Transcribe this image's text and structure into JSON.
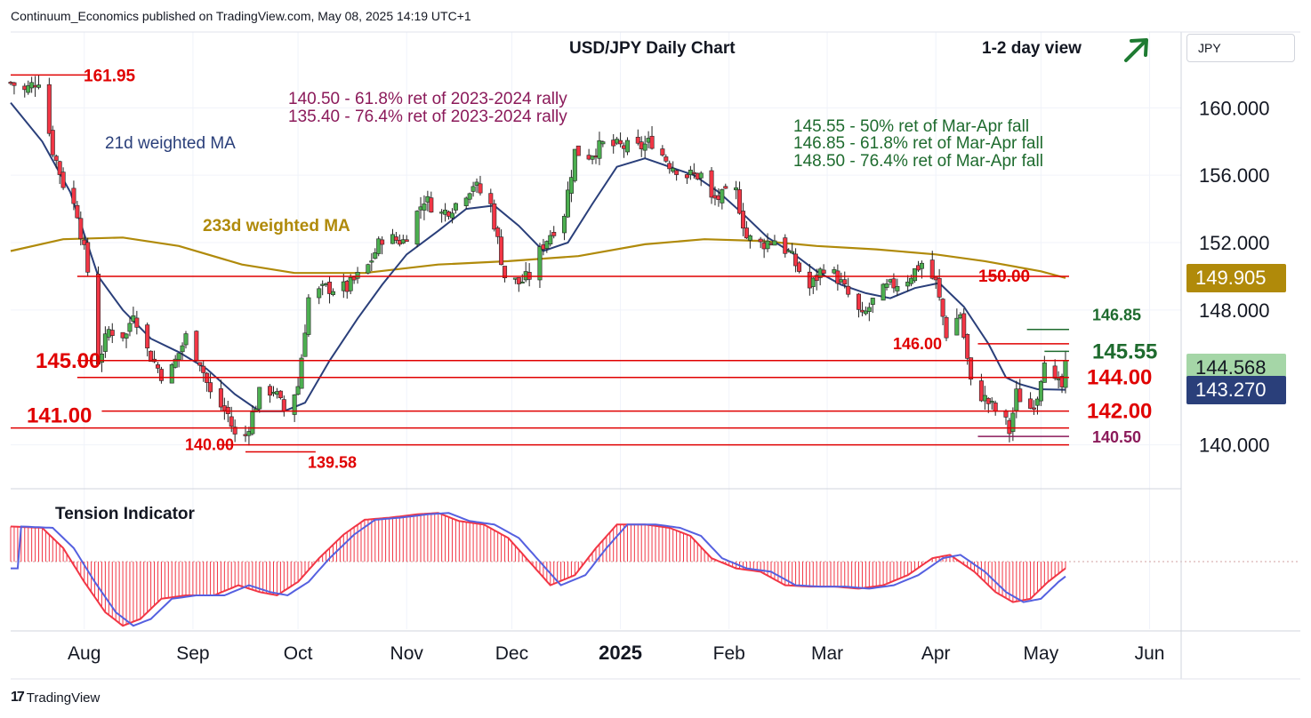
{
  "header": {
    "published": "Continuum_Economics published on TradingView.com, May 08, 2025 14:19 UTC+1"
  },
  "footer": {
    "logo_text": "17",
    "brand": "TradingView"
  },
  "currency": "JPY",
  "colors": {
    "up": "#4caf50",
    "down": "#f23645",
    "ma21": "#2a3f7a",
    "ma233": "#b08a0a",
    "level": "#e00000",
    "fib_green": "#1e6b2e",
    "fib_purple": "#8b1a5a",
    "arrow": "#1e7b32",
    "tension": "#f23645",
    "tension_line": "#5560e0"
  },
  "chart_data": [
    {
      "type": "candlestick",
      "title": "USD/JPY Daily Chart",
      "view": "1-2 day view",
      "view_direction": "up",
      "x_axis": {
        "tick_labels": [
          "Aug",
          "Sep",
          "Oct",
          "Nov",
          "Dec",
          "2025",
          "Feb",
          "Mar",
          "Apr",
          "May",
          "Jun"
        ],
        "range": [
          "2024-07-11",
          "2025-06-10"
        ]
      },
      "y_axis": {
        "tick_labels": [
          "160.000",
          "156.000",
          "152.000",
          "148.000",
          "140.000"
        ],
        "range": [
          137.5,
          164.5
        ]
      },
      "grid": true,
      "series": [
        {
          "name": "21d weighted MA",
          "points": [
            [
              "2024-07-11",
              160.3
            ],
            [
              "2024-07-20",
              158.0
            ],
            [
              "2024-07-28",
              155.0
            ],
            [
              "2024-08-05",
              150.0
            ],
            [
              "2024-08-12",
              148.0
            ],
            [
              "2024-08-20",
              146.3
            ],
            [
              "2024-08-28",
              145.5
            ],
            [
              "2024-09-05",
              144.5
            ],
            [
              "2024-09-13",
              143.0
            ],
            [
              "2024-09-20",
              142.0
            ],
            [
              "2024-09-27",
              142.0
            ],
            [
              "2024-10-03",
              142.5
            ],
            [
              "2024-10-10",
              145.0
            ],
            [
              "2024-10-18",
              147.5
            ],
            [
              "2024-10-25",
              149.5
            ],
            [
              "2024-11-01",
              151.3
            ],
            [
              "2024-11-10",
              152.7
            ],
            [
              "2024-11-18",
              154.0
            ],
            [
              "2024-11-26",
              154.2
            ],
            [
              "2024-12-03",
              153.0
            ],
            [
              "2024-12-10",
              151.5
            ],
            [
              "2024-12-17",
              152.0
            ],
            [
              "2024-12-24",
              154.3
            ],
            [
              "2024-12-31",
              156.5
            ],
            [
              "2025-01-08",
              157.0
            ],
            [
              "2025-01-15",
              156.5
            ],
            [
              "2025-01-22",
              156.0
            ],
            [
              "2025-01-29",
              155.0
            ],
            [
              "2025-02-05",
              153.7
            ],
            [
              "2025-02-12",
              152.3
            ],
            [
              "2025-02-19",
              151.4
            ],
            [
              "2025-02-26",
              150.3
            ],
            [
              "2025-03-05",
              149.5
            ],
            [
              "2025-03-12",
              149.0
            ],
            [
              "2025-03-19",
              148.7
            ],
            [
              "2025-03-26",
              149.3
            ],
            [
              "2025-04-02",
              149.6
            ],
            [
              "2025-04-09",
              148.2
            ],
            [
              "2025-04-16",
              146.0
            ],
            [
              "2025-04-21",
              144.0
            ],
            [
              "2025-04-25",
              143.6
            ],
            [
              "2025-04-30",
              143.3
            ],
            [
              "2025-05-08",
              143.27
            ]
          ]
        },
        {
          "name": "233d weighted MA",
          "points": [
            [
              "2024-07-11",
              151.5
            ],
            [
              "2024-07-26",
              152.2
            ],
            [
              "2024-08-12",
              152.3
            ],
            [
              "2024-08-28",
              151.8
            ],
            [
              "2024-09-15",
              150.7
            ],
            [
              "2024-09-30",
              150.2
            ],
            [
              "2024-10-20",
              150.2
            ],
            [
              "2024-11-10",
              150.7
            ],
            [
              "2024-11-30",
              150.9
            ],
            [
              "2024-12-20",
              151.2
            ],
            [
              "2025-01-08",
              151.9
            ],
            [
              "2025-01-25",
              152.2
            ],
            [
              "2025-02-10",
              152.1
            ],
            [
              "2025-02-26",
              151.8
            ],
            [
              "2025-03-15",
              151.6
            ],
            [
              "2025-04-01",
              151.3
            ],
            [
              "2025-04-15",
              150.9
            ],
            [
              "2025-05-01",
              150.3
            ],
            [
              "2025-05-08",
              149.905
            ]
          ]
        }
      ],
      "ohlc_path": [
        [
          "2024-07-11",
          161.5
        ],
        [
          "2024-07-15",
          161.0
        ],
        [
          "2024-07-19",
          161.7
        ],
        [
          "2024-07-23",
          157.5
        ],
        [
          "2024-07-26",
          155.5
        ],
        [
          "2024-07-30",
          153.8
        ],
        [
          "2024-08-02",
          150.3
        ],
        [
          "2024-08-05",
          145.0
        ],
        [
          "2024-08-08",
          146.8
        ],
        [
          "2024-08-13",
          146.5
        ],
        [
          "2024-08-15",
          148.0
        ],
        [
          "2024-08-19",
          145.6
        ],
        [
          "2024-08-23",
          144.2
        ],
        [
          "2024-08-26",
          144.5
        ],
        [
          "2024-08-30",
          146.4
        ],
        [
          "2024-09-03",
          145.0
        ],
        [
          "2024-09-06",
          143.0
        ],
        [
          "2024-09-11",
          141.8
        ],
        [
          "2024-09-13",
          140.5
        ],
        [
          "2024-09-16",
          140.6
        ],
        [
          "2024-09-20",
          143.0
        ],
        [
          "2024-09-24",
          143.3
        ],
        [
          "2024-09-27",
          142.0
        ],
        [
          "2024-10-01",
          143.5
        ],
        [
          "2024-10-04",
          148.7
        ],
        [
          "2024-10-09",
          149.3
        ],
        [
          "2024-10-15",
          149.3
        ],
        [
          "2024-10-21",
          150.6
        ],
        [
          "2024-10-25",
          152.3
        ],
        [
          "2024-10-31",
          152.1
        ],
        [
          "2024-11-06",
          154.6
        ],
        [
          "2024-11-11",
          153.7
        ],
        [
          "2024-11-15",
          154.3
        ],
        [
          "2024-11-20",
          155.5
        ],
        [
          "2024-11-25",
          154.2
        ],
        [
          "2024-11-29",
          150.0
        ],
        [
          "2024-12-03",
          149.6
        ],
        [
          "2024-12-06",
          150.0
        ],
        [
          "2024-12-10",
          151.9
        ],
        [
          "2024-12-16",
          153.8
        ],
        [
          "2024-12-19",
          157.4
        ],
        [
          "2024-12-23",
          157.2
        ],
        [
          "2024-12-27",
          157.8
        ],
        [
          "2025-01-06",
          157.6
        ],
        [
          "2025-01-10",
          158.0
        ],
        [
          "2025-01-15",
          156.7
        ],
        [
          "2025-01-20",
          156.0
        ],
        [
          "2025-01-24",
          156.0
        ],
        [
          "2025-01-27",
          154.5
        ],
        [
          "2025-02-03",
          155.0
        ],
        [
          "2025-02-06",
          152.3
        ],
        [
          "2025-02-10",
          151.9
        ],
        [
          "2025-02-14",
          152.2
        ],
        [
          "2025-02-18",
          151.4
        ],
        [
          "2025-02-24",
          149.3
        ],
        [
          "2025-02-28",
          150.6
        ],
        [
          "2025-03-04",
          149.9
        ],
        [
          "2025-03-11",
          147.5
        ],
        [
          "2025-03-14",
          148.5
        ],
        [
          "2025-03-18",
          149.3
        ],
        [
          "2025-03-24",
          149.9
        ],
        [
          "2025-03-28",
          150.8
        ],
        [
          "2025-04-01",
          149.6
        ],
        [
          "2025-04-04",
          146.6
        ],
        [
          "2025-04-08",
          147.8
        ],
        [
          "2025-04-11",
          143.6
        ],
        [
          "2025-04-16",
          142.5
        ],
        [
          "2025-04-21",
          141.3
        ],
        [
          "2025-04-22",
          140.8
        ],
        [
          "2025-04-24",
          143.0
        ],
        [
          "2025-04-28",
          142.2
        ],
        [
          "2025-04-30",
          143.0
        ],
        [
          "2025-05-02",
          145.3
        ],
        [
          "2025-05-05",
          143.6
        ],
        [
          "2025-05-07",
          143.4
        ],
        [
          "2025-05-08",
          144.568
        ]
      ],
      "horizontal_levels": [
        {
          "value": 161.95,
          "label": "161.95",
          "from": "2024-07-11",
          "to": "2024-08-01"
        },
        {
          "value": 150.0,
          "label": "150.00",
          "from": "2024-07-30",
          "to": "2025-05-08"
        },
        {
          "value": 146.85,
          "label": "146.85",
          "from": "2025-04-27",
          "to": "2025-05-08"
        },
        {
          "value": 146.0,
          "label": "146.00",
          "from": "2025-04-13",
          "to": "2025-05-08"
        },
        {
          "value": 145.55,
          "label": "145.55",
          "from": "2025-05-02",
          "to": "2025-05-08"
        },
        {
          "value": 145.0,
          "label": "145.00",
          "from": "2024-07-30",
          "to": "2025-05-08"
        },
        {
          "value": 144.0,
          "label": "144.00",
          "from": "2024-07-30",
          "to": "2025-05-08"
        },
        {
          "value": 142.0,
          "label": "142.00",
          "from": "2024-08-06",
          "to": "2025-05-08"
        },
        {
          "value": 141.0,
          "label": "141.00",
          "from": "2024-07-11",
          "to": "2025-05-08"
        },
        {
          "value": 140.5,
          "label": "140.50",
          "from": "2025-04-13",
          "to": "2025-05-08"
        },
        {
          "value": 140.0,
          "label": "140.00",
          "from": "2024-09-08",
          "to": "2025-05-08"
        },
        {
          "value": 139.58,
          "label": "139.58",
          "from": "2024-09-16",
          "to": "2024-10-05"
        }
      ],
      "annotations": [
        {
          "text": "140.50 - 61.8% ret of 2023-2024 rally",
          "group": "fib_purple"
        },
        {
          "text": "135.40 - 76.4% ret of 2023-2024 rally",
          "group": "fib_purple"
        },
        {
          "text": "145.55 - 50% ret of Mar-Apr fall",
          "group": "fib_green"
        },
        {
          "text": "146.85 - 61.8% ret of Mar-Apr fall",
          "group": "fib_green"
        },
        {
          "text": "148.50 - 76.4% ret of Mar-Apr fall",
          "group": "fib_green"
        }
      ],
      "last_price_tags": [
        {
          "value": "149.905",
          "series": "233d weighted MA",
          "color": "#b08a0a",
          "text_color": "#ffffff"
        },
        {
          "value": "144.568",
          "series": "USD/JPY",
          "color": "#a5d6a7",
          "text_color": "#131722"
        },
        {
          "value": "143.270",
          "series": "21d weighted MA",
          "color": "#2a3f7a",
          "text_color": "#ffffff"
        }
      ]
    },
    {
      "type": "area",
      "title": "Tension Indicator",
      "x_range": [
        "2024-07-11",
        "2025-06-10"
      ],
      "y_range": [
        -1.0,
        1.0
      ],
      "baseline": 0,
      "values": [
        [
          "2024-07-11",
          0.52
        ],
        [
          "2024-07-20",
          0.5
        ],
        [
          "2024-07-26",
          0.2
        ],
        [
          "2024-08-01",
          -0.3
        ],
        [
          "2024-08-07",
          -0.75
        ],
        [
          "2024-08-12",
          -0.95
        ],
        [
          "2024-08-17",
          -0.85
        ],
        [
          "2024-08-23",
          -0.55
        ],
        [
          "2024-08-30",
          -0.5
        ],
        [
          "2024-09-07",
          -0.5
        ],
        [
          "2024-09-14",
          -0.35
        ],
        [
          "2024-09-20",
          -0.45
        ],
        [
          "2024-09-25",
          -0.5
        ],
        [
          "2024-10-01",
          -0.3
        ],
        [
          "2024-10-07",
          0.05
        ],
        [
          "2024-10-14",
          0.4
        ],
        [
          "2024-10-20",
          0.62
        ],
        [
          "2024-10-27",
          0.65
        ],
        [
          "2024-11-04",
          0.7
        ],
        [
          "2024-11-10",
          0.72
        ],
        [
          "2024-11-16",
          0.6
        ],
        [
          "2024-11-23",
          0.55
        ],
        [
          "2024-11-30",
          0.35
        ],
        [
          "2024-12-06",
          0.0
        ],
        [
          "2024-12-12",
          -0.35
        ],
        [
          "2024-12-19",
          -0.2
        ],
        [
          "2024-12-25",
          0.2
        ],
        [
          "2024-12-31",
          0.55
        ],
        [
          "2025-01-08",
          0.55
        ],
        [
          "2025-01-15",
          0.5
        ],
        [
          "2025-01-21",
          0.38
        ],
        [
          "2025-01-27",
          0.05
        ],
        [
          "2025-02-03",
          -0.1
        ],
        [
          "2025-02-10",
          -0.15
        ],
        [
          "2025-02-17",
          -0.35
        ],
        [
          "2025-02-24",
          -0.37
        ],
        [
          "2025-03-03",
          -0.37
        ],
        [
          "2025-03-10",
          -0.4
        ],
        [
          "2025-03-17",
          -0.35
        ],
        [
          "2025-03-24",
          -0.2
        ],
        [
          "2025-03-31",
          0.05
        ],
        [
          "2025-04-05",
          0.1
        ],
        [
          "2025-04-12",
          -0.15
        ],
        [
          "2025-04-18",
          -0.45
        ],
        [
          "2025-04-23",
          -0.6
        ],
        [
          "2025-04-28",
          -0.55
        ],
        [
          "2025-05-03",
          -0.3
        ],
        [
          "2025-05-08",
          -0.1
        ]
      ]
    }
  ]
}
